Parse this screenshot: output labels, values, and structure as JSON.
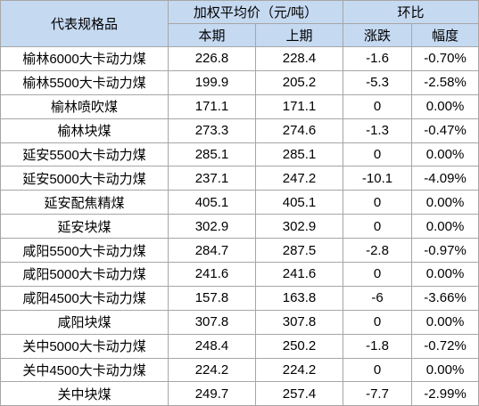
{
  "header": {
    "spec": "代表规格品",
    "price_group": "加权平均价（元/吨）",
    "compare_group": "环比",
    "current": "本期",
    "previous": "上期",
    "change": "涨跌",
    "pct": "幅度"
  },
  "rows": [
    {
      "name": "榆林6000大卡动力煤",
      "current": "226.8",
      "previous": "228.4",
      "change": "-1.6",
      "pct": "-0.70%"
    },
    {
      "name": "榆林5500大卡动力煤",
      "current": "199.9",
      "previous": "205.2",
      "change": "-5.3",
      "pct": "-2.58%"
    },
    {
      "name": "榆林喷吹煤",
      "current": "171.1",
      "previous": "171.1",
      "change": "0",
      "pct": "0.00%"
    },
    {
      "name": "榆林块煤",
      "current": "273.3",
      "previous": "274.6",
      "change": "-1.3",
      "pct": "-0.47%"
    },
    {
      "name": "延安5500大卡动力煤",
      "current": "285.1",
      "previous": "285.1",
      "change": "0",
      "pct": "0.00%"
    },
    {
      "name": "延安5000大卡动力煤",
      "current": "237.1",
      "previous": "247.2",
      "change": "-10.1",
      "pct": "-4.09%"
    },
    {
      "name": "延安配焦精煤",
      "current": "405.1",
      "previous": "405.1",
      "change": "0",
      "pct": "0.00%"
    },
    {
      "name": "延安块煤",
      "current": "302.9",
      "previous": "302.9",
      "change": "0",
      "pct": "0.00%"
    },
    {
      "name": "咸阳5500大卡动力煤",
      "current": "284.7",
      "previous": "287.5",
      "change": "-2.8",
      "pct": "-0.97%"
    },
    {
      "name": "咸阳5000大卡动力煤",
      "current": "241.6",
      "previous": "241.6",
      "change": "0",
      "pct": "0.00%"
    },
    {
      "name": "咸阳4500大卡动力煤",
      "current": "157.8",
      "previous": "163.8",
      "change": "-6",
      "pct": "-3.66%"
    },
    {
      "name": "咸阳块煤",
      "current": "307.8",
      "previous": "307.8",
      "change": "0",
      "pct": "0.00%"
    },
    {
      "name": "关中5000大卡动力煤",
      "current": "248.4",
      "previous": "250.2",
      "change": "-1.8",
      "pct": "-0.72%"
    },
    {
      "name": "关中4500大卡动力煤",
      "current": "224.2",
      "previous": "224.2",
      "change": "0",
      "pct": "0.00%"
    },
    {
      "name": "关中块煤",
      "current": "249.7",
      "previous": "257.4",
      "change": "-7.7",
      "pct": "-2.99%"
    }
  ]
}
